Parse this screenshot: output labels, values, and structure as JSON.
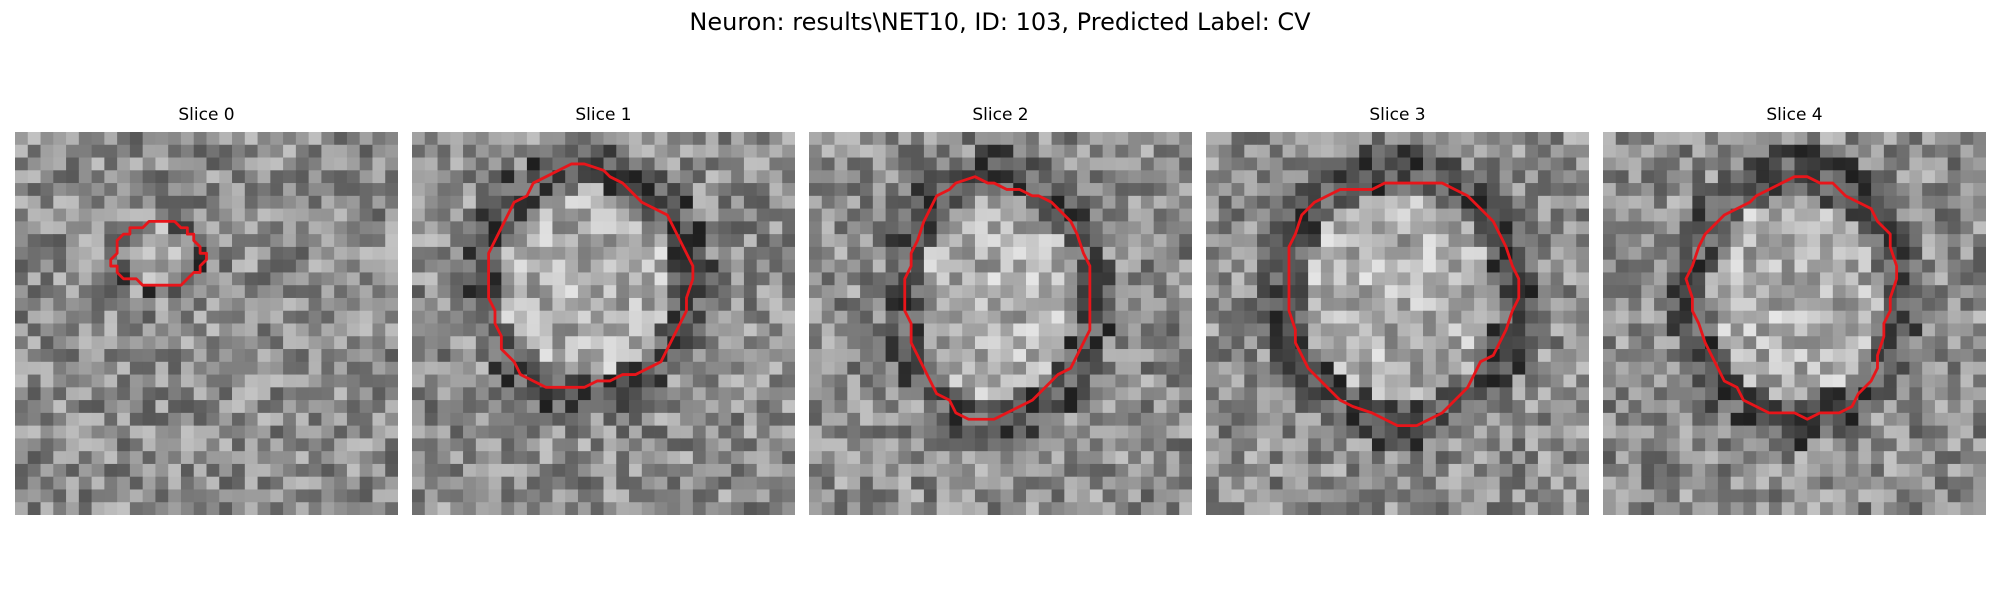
{
  "figure": {
    "suptitle": "Neuron: results\\NET10, ID: 103, Predicted Label: CV",
    "contour_color": "#e8151a",
    "colormap": "gray"
  },
  "slices": [
    {
      "title": "Slice 0",
      "index": 0
    },
    {
      "title": "Slice 1",
      "index": 1
    },
    {
      "title": "Slice 2",
      "index": 2
    },
    {
      "title": "Slice 3",
      "index": 3
    },
    {
      "title": "Slice 4",
      "index": 4
    }
  ]
}
